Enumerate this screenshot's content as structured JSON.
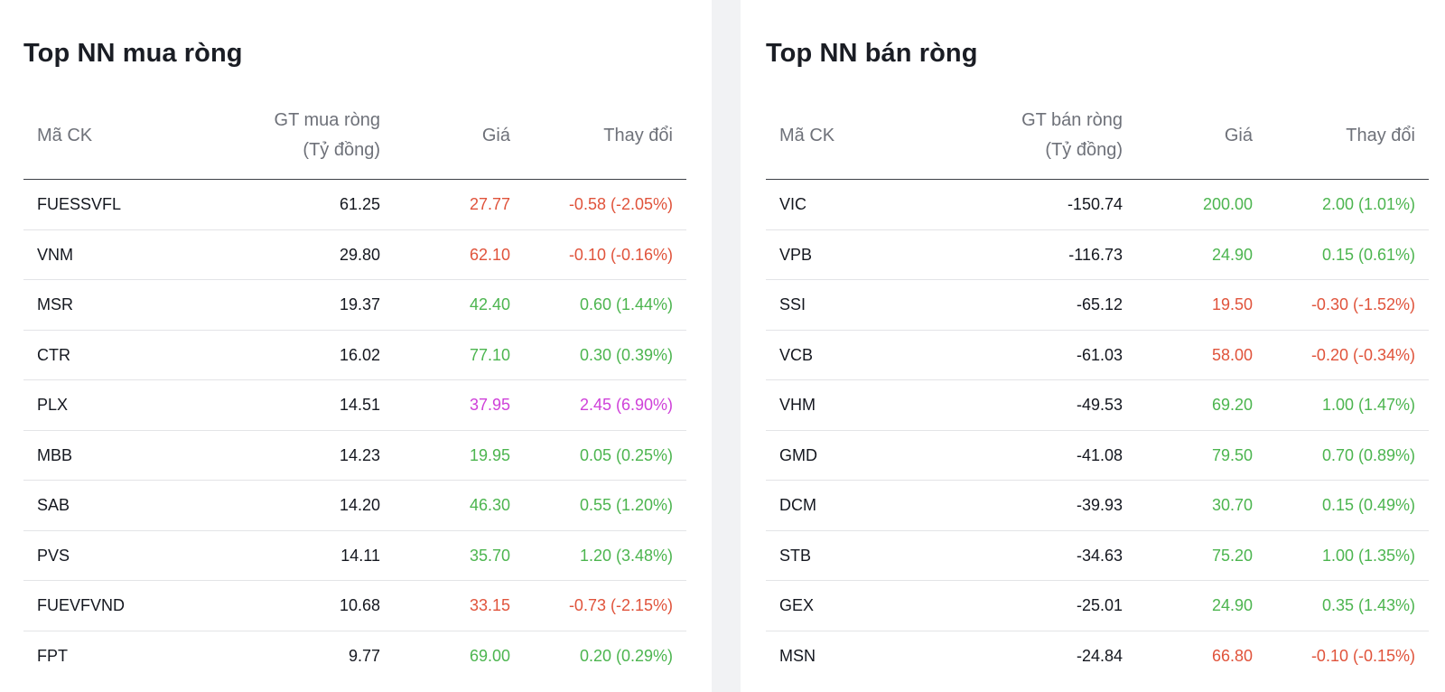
{
  "colors": {
    "up": "#4cb54f",
    "down": "#e0533b",
    "ceiling": "#cf41d9"
  },
  "buy": {
    "title": "Top NN mua ròng",
    "headers": {
      "code": "Mã CK",
      "value_line1": "GT mua ròng",
      "value_line2": "(Tỷ đồng)",
      "price": "Giá",
      "change": "Thay đổi"
    },
    "rows": [
      {
        "code": "FUESSVFL",
        "value": "61.25",
        "price": "27.77",
        "change": "-0.58 (-2.05%)",
        "trend": "down"
      },
      {
        "code": "VNM",
        "value": "29.80",
        "price": "62.10",
        "change": "-0.10 (-0.16%)",
        "trend": "down"
      },
      {
        "code": "MSR",
        "value": "19.37",
        "price": "42.40",
        "change": "0.60 (1.44%)",
        "trend": "up"
      },
      {
        "code": "CTR",
        "value": "16.02",
        "price": "77.10",
        "change": "0.30 (0.39%)",
        "trend": "up"
      },
      {
        "code": "PLX",
        "value": "14.51",
        "price": "37.95",
        "change": "2.45 (6.90%)",
        "trend": "ceiling"
      },
      {
        "code": "MBB",
        "value": "14.23",
        "price": "19.95",
        "change": "0.05 (0.25%)",
        "trend": "up"
      },
      {
        "code": "SAB",
        "value": "14.20",
        "price": "46.30",
        "change": "0.55 (1.20%)",
        "trend": "up"
      },
      {
        "code": "PVS",
        "value": "14.11",
        "price": "35.70",
        "change": "1.20 (3.48%)",
        "trend": "up"
      },
      {
        "code": "FUEVFVND",
        "value": "10.68",
        "price": "33.15",
        "change": "-0.73 (-2.15%)",
        "trend": "down"
      },
      {
        "code": "FPT",
        "value": "9.77",
        "price": "69.00",
        "change": "0.20 (0.29%)",
        "trend": "up"
      }
    ]
  },
  "sell": {
    "title": "Top NN bán ròng",
    "headers": {
      "code": "Mã CK",
      "value_line1": "GT bán ròng",
      "value_line2": "(Tỷ đồng)",
      "price": "Giá",
      "change": "Thay đổi"
    },
    "rows": [
      {
        "code": "VIC",
        "value": "-150.74",
        "price": "200.00",
        "change": "2.00 (1.01%)",
        "trend": "up"
      },
      {
        "code": "VPB",
        "value": "-116.73",
        "price": "24.90",
        "change": "0.15 (0.61%)",
        "trend": "up"
      },
      {
        "code": "SSI",
        "value": "-65.12",
        "price": "19.50",
        "change": "-0.30 (-1.52%)",
        "trend": "down"
      },
      {
        "code": "VCB",
        "value": "-61.03",
        "price": "58.00",
        "change": "-0.20 (-0.34%)",
        "trend": "down"
      },
      {
        "code": "VHM",
        "value": "-49.53",
        "price": "69.20",
        "change": "1.00 (1.47%)",
        "trend": "up"
      },
      {
        "code": "GMD",
        "value": "-41.08",
        "price": "79.50",
        "change": "0.70 (0.89%)",
        "trend": "up"
      },
      {
        "code": "DCM",
        "value": "-39.93",
        "price": "30.70",
        "change": "0.15 (0.49%)",
        "trend": "up"
      },
      {
        "code": "STB",
        "value": "-34.63",
        "price": "75.20",
        "change": "1.00 (1.35%)",
        "trend": "up"
      },
      {
        "code": "GEX",
        "value": "-25.01",
        "price": "24.90",
        "change": "0.35 (1.43%)",
        "trend": "up"
      },
      {
        "code": "MSN",
        "value": "-24.84",
        "price": "66.80",
        "change": "-0.10 (-0.15%)",
        "trend": "down"
      }
    ]
  }
}
